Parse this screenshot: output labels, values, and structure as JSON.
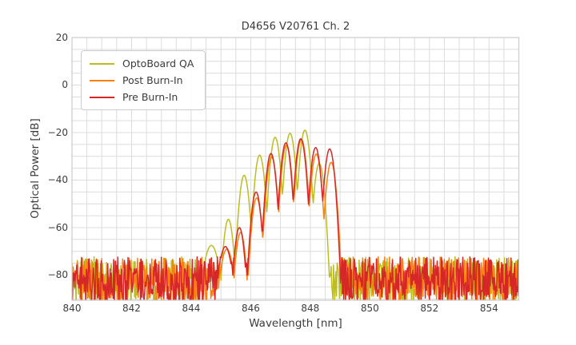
{
  "chart_data": {
    "type": "line",
    "title": "D4656 V20761 Ch. 2",
    "xlabel": "Wavelength [nm]",
    "ylabel": "Optical Power [dB]",
    "xlim": [
      840,
      855
    ],
    "ylim": [
      -90.6,
      20
    ],
    "x_ticks": [
      840,
      842,
      844,
      846,
      848,
      850,
      852,
      854
    ],
    "y_ticks": [
      20,
      0,
      -20,
      -40,
      -60,
      -80
    ],
    "grid": {
      "show": true,
      "minor_x_step_nm": 0.5,
      "minor_y_step_db": 5
    },
    "legend": {
      "position": "upper left"
    },
    "colors": {
      "grid": "#dcdcdc",
      "spine": "#cccccc",
      "text": "#3b3b3b",
      "background": "#ffffff"
    },
    "noise_floor_db": {
      "top": -72.3,
      "bottom": -92
    },
    "mode_shape": {
      "halfwidth_nm": 0.26,
      "depth_db": 28,
      "sample_step_nm": 0.02
    },
    "series": [
      {
        "name": "OptoBoard QA",
        "color": "#bcbd22",
        "noise_seed": 101,
        "mode_peaks_nm_db": [
          [
            844.68,
            -67.5,
            1.7
          ],
          [
            845.25,
            -56.5
          ],
          [
            845.78,
            -38
          ],
          [
            846.3,
            -29.5
          ],
          [
            846.82,
            -22
          ],
          [
            847.32,
            -20.3
          ],
          [
            847.82,
            -19
          ],
          [
            848.3,
            -33
          ]
        ]
      },
      {
        "name": "Post Burn-In",
        "color": "#ff7f0e",
        "noise_seed": 202,
        "mode_peaks_nm_db": [
          [
            845.2,
            -69,
            1.4
          ],
          [
            845.66,
            -62
          ],
          [
            846.2,
            -47.5
          ],
          [
            846.7,
            -30.3
          ],
          [
            847.2,
            -25.3
          ],
          [
            847.7,
            -22.9
          ],
          [
            848.2,
            -29
          ],
          [
            848.7,
            -32.5
          ]
        ]
      },
      {
        "name": "Pre Burn-In",
        "color": "#d62728",
        "noise_seed": 303,
        "mode_peaks_nm_db": [
          [
            845.15,
            -68,
            1.4
          ],
          [
            845.62,
            -60
          ],
          [
            846.18,
            -45
          ],
          [
            846.68,
            -28.8
          ],
          [
            847.18,
            -24.3
          ],
          [
            847.68,
            -22.6
          ],
          [
            848.18,
            -26.3
          ],
          [
            848.65,
            -26.9
          ]
        ]
      }
    ]
  }
}
